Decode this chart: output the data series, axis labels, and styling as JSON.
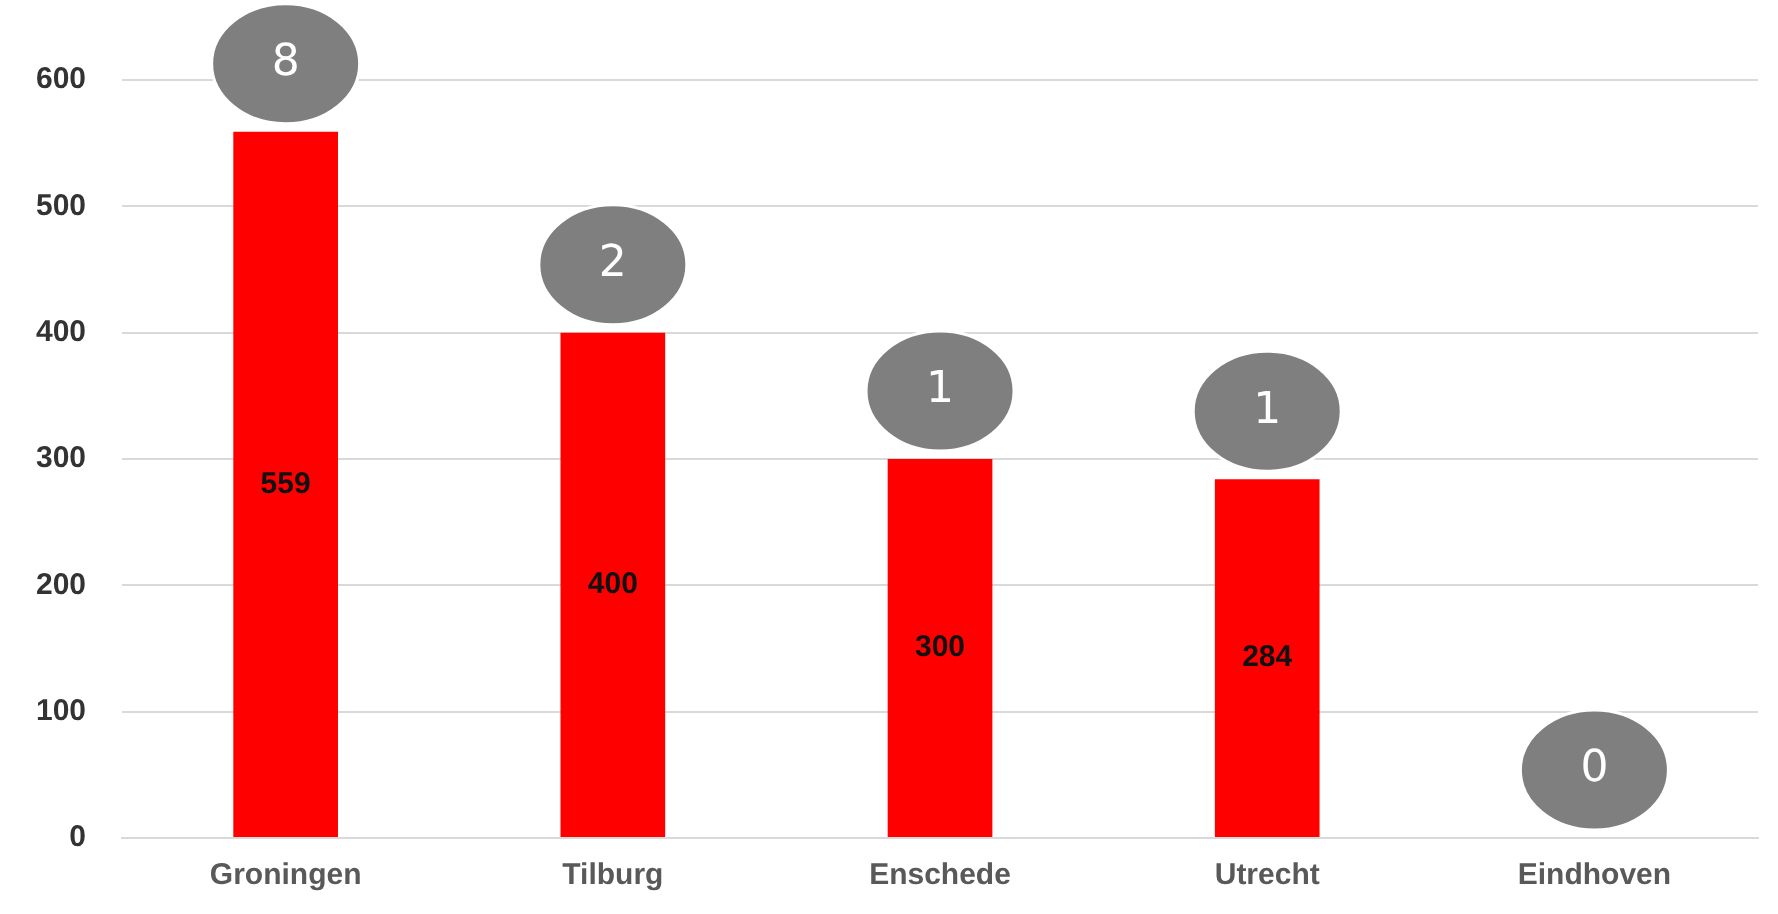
{
  "chart_data": {
    "type": "bar",
    "categories": [
      "Groningen",
      "Tilburg",
      "Enschede",
      "Utrecht",
      "Eindhoven"
    ],
    "values": [
      559,
      400,
      300,
      284,
      0
    ],
    "color": "#ff0000",
    "value_labels": [
      "559",
      "400",
      "300",
      "284",
      null
    ],
    "ylim": [
      0,
      600
    ],
    "yticks": [
      0,
      100,
      200,
      300,
      400,
      500,
      600
    ],
    "grid": "y",
    "legend": false,
    "annotations": [
      {
        "text": "8",
        "x": "Groningen",
        "y": 559
      },
      {
        "text": "2",
        "x": "Tilburg",
        "y": 400
      },
      {
        "text": "1",
        "x": "Enschede",
        "y": 300
      },
      {
        "text": "1",
        "x": "Utrecht",
        "y": 284
      },
      {
        "text": "0",
        "x": "Eindhoven",
        "y": 0
      }
    ]
  }
}
